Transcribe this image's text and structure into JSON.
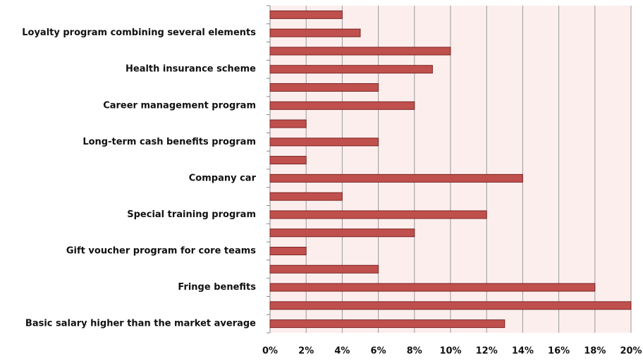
{
  "chart_data": {
    "type": "hbar",
    "categories": [
      null,
      "Loyalty program combining several elements",
      null,
      "Health insurance scheme",
      null,
      "Career management program",
      null,
      "Long-term cash benefits program",
      null,
      "Company car",
      null,
      "Special training program",
      null,
      "Gift voucher program for core teams",
      null,
      "Fringe benefits",
      null,
      "Basic salary higher than the market average"
    ],
    "values": [
      4,
      5,
      10,
      9,
      6,
      8,
      2,
      6,
      2,
      14,
      4,
      12,
      8,
      2,
      6,
      18,
      20,
      13
    ],
    "color": "#c0504d",
    "xlim": [
      0,
      20
    ],
    "xticks": [
      {
        "value": 0,
        "label": "0%"
      },
      {
        "value": 2,
        "label": "2%"
      },
      {
        "value": 4,
        "label": "4%"
      },
      {
        "value": 6,
        "label": "6%"
      },
      {
        "value": 8,
        "label": "8%"
      },
      {
        "value": 10,
        "label": "10%"
      },
      {
        "value": 12,
        "label": "12%"
      },
      {
        "value": 14,
        "label": "14%"
      },
      {
        "value": 16,
        "label": "16%"
      },
      {
        "value": 18,
        "label": "18%"
      },
      {
        "value": 20,
        "label": "20%"
      }
    ],
    "grid": true
  }
}
